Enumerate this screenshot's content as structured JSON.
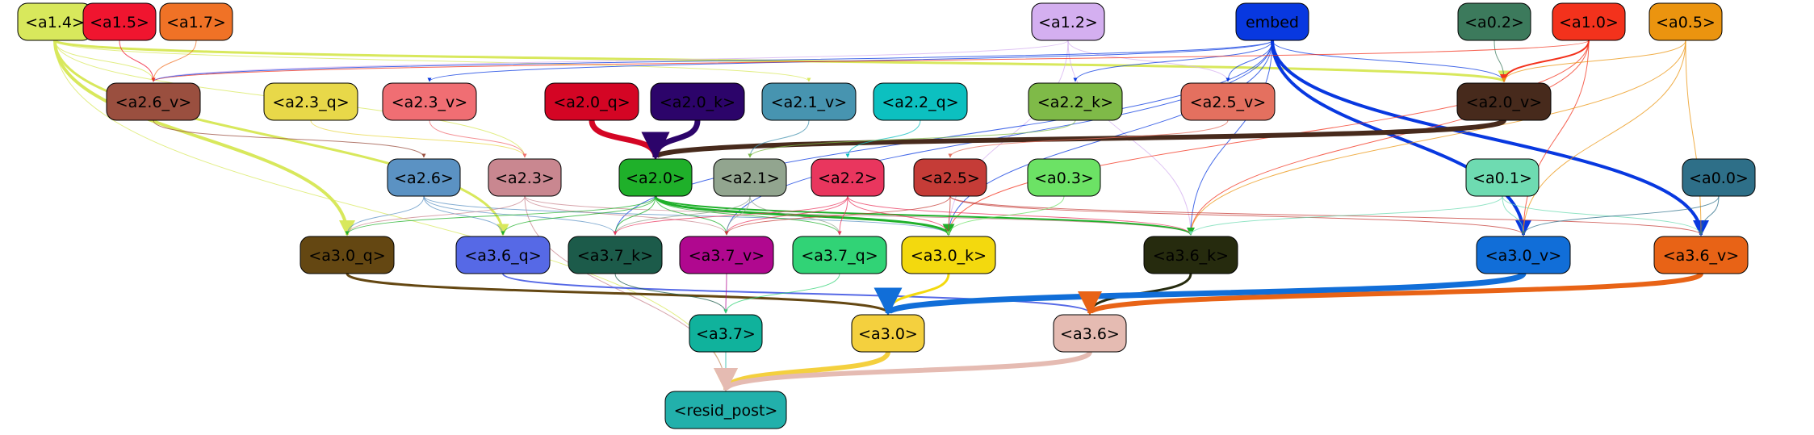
{
  "diagram": {
    "nodes": [
      {
        "id": "a1_4",
        "label": "<a1.4>",
        "fill": "#d8e85c",
        "text": "#000000"
      },
      {
        "id": "a1_5",
        "label": "<a1.5>",
        "fill": "#f0152f",
        "text": "#000000"
      },
      {
        "id": "a1_7",
        "label": "<a1.7>",
        "fill": "#f07226",
        "text": "#000000"
      },
      {
        "id": "a1_2",
        "label": "<a1.2>",
        "fill": "#d4aff0",
        "text": "#000000"
      },
      {
        "id": "embed",
        "label": "embed",
        "fill": "#0838e0",
        "text": "#000000"
      },
      {
        "id": "a0_2",
        "label": "<a0.2>",
        "fill": "#3c7a5c",
        "text": "#000000"
      },
      {
        "id": "a1_0",
        "label": "<a1.0>",
        "fill": "#f3321c",
        "text": "#000000"
      },
      {
        "id": "a0_5",
        "label": "<a0.5>",
        "fill": "#eb940f",
        "text": "#000000"
      },
      {
        "id": "a2_6_v",
        "label": "<a2.6_v>",
        "fill": "#9a4f3f",
        "text": "#000000"
      },
      {
        "id": "a2_3_q",
        "label": "<a2.3_q>",
        "fill": "#e8d849",
        "text": "#000000"
      },
      {
        "id": "a2_3_v",
        "label": "<a2.3_v>",
        "fill": "#f06e73",
        "text": "#000000"
      },
      {
        "id": "a2_0_q",
        "label": "<a2.0_q>",
        "fill": "#d40524",
        "text": "#000000"
      },
      {
        "id": "a2_0_k",
        "label": "<a2.0_k>",
        "fill": "#2c046a",
        "text": "#000000"
      },
      {
        "id": "a2_1_v",
        "label": "<a2.1_v>",
        "fill": "#4794b0",
        "text": "#000000"
      },
      {
        "id": "a2_2_q",
        "label": "<a2.2_q>",
        "fill": "#0cc0c0",
        "text": "#000000"
      },
      {
        "id": "a2_2_k",
        "label": "<a2.2_k>",
        "fill": "#7fba48",
        "text": "#000000"
      },
      {
        "id": "a2_5_v",
        "label": "<a2.5_v>",
        "fill": "#e4705f",
        "text": "#000000"
      },
      {
        "id": "a2_0_v",
        "label": "<a2.0_v>",
        "fill": "#472a1c",
        "text": "#000000"
      },
      {
        "id": "a2_6",
        "label": "<a2.6>",
        "fill": "#5b92c3",
        "text": "#000000"
      },
      {
        "id": "a2_3",
        "label": "<a2.3>",
        "fill": "#c98790",
        "text": "#000000"
      },
      {
        "id": "a2_0",
        "label": "<a2.0>",
        "fill": "#1fb02a",
        "text": "#000000"
      },
      {
        "id": "a2_1",
        "label": "<a2.1>",
        "fill": "#92a58f",
        "text": "#000000"
      },
      {
        "id": "a2_2",
        "label": "<a2.2>",
        "fill": "#e9365e",
        "text": "#000000"
      },
      {
        "id": "a2_5",
        "label": "<a2.5>",
        "fill": "#c53c37",
        "text": "#000000"
      },
      {
        "id": "a0_3",
        "label": "<a0.3>",
        "fill": "#6ce265",
        "text": "#000000"
      },
      {
        "id": "a0_1",
        "label": "<a0.1>",
        "fill": "#6edbb1",
        "text": "#000000"
      },
      {
        "id": "a0_0",
        "label": "<a0.0>",
        "fill": "#2e6f88",
        "text": "#000000"
      },
      {
        "id": "a3_0_q",
        "label": "<a3.0_q>",
        "fill": "#644712",
        "text": "#000000"
      },
      {
        "id": "a3_6_q",
        "label": "<a3.6_q>",
        "fill": "#5669e6",
        "text": "#000000"
      },
      {
        "id": "a3_7_k",
        "label": "<a3.7_k>",
        "fill": "#1c5b4a",
        "text": "#000000"
      },
      {
        "id": "a3_7_v",
        "label": "<a3.7_v>",
        "fill": "#b0088f",
        "text": "#000000"
      },
      {
        "id": "a3_7_q",
        "label": "<a3.7_q>",
        "fill": "#31d376",
        "text": "#000000"
      },
      {
        "id": "a3_0_k",
        "label": "<a3.0_k>",
        "fill": "#f3d90e",
        "text": "#000000"
      },
      {
        "id": "a3_6_k",
        "label": "<a3.6_k>",
        "fill": "#262b0e",
        "text": "#000000"
      },
      {
        "id": "a3_0_v",
        "label": "<a3.0_v>",
        "fill": "#116ed8",
        "text": "#000000"
      },
      {
        "id": "a3_6_v",
        "label": "<a3.6_v>",
        "fill": "#e86316",
        "text": "#000000"
      },
      {
        "id": "a3_7",
        "label": "<a3.7>",
        "fill": "#10b29c",
        "text": "#000000"
      },
      {
        "id": "a3_0",
        "label": "<a3.0>",
        "fill": "#f4d03e",
        "text": "#000000"
      },
      {
        "id": "a3_6",
        "label": "<a3.6>",
        "fill": "#e5bbb2",
        "text": "#000000"
      },
      {
        "id": "resid_post",
        "label": "<resid_post>",
        "fill": "#22b0ab",
        "text": "#000000"
      }
    ],
    "edges": [
      {
        "from": "a1_4",
        "to": "a2_6_v",
        "color": "#d8e85c",
        "weight": 1
      },
      {
        "from": "a1_4",
        "to": "a2_0_v",
        "color": "#d8e85c",
        "weight": 3
      },
      {
        "from": "a1_4",
        "to": "a2_1_v",
        "color": "#d8e85c",
        "weight": 1
      },
      {
        "from": "a1_4",
        "to": "a3_0_q",
        "color": "#d8e85c",
        "weight": 4
      },
      {
        "from": "a1_4",
        "to": "a3_6_q",
        "color": "#d8e85c",
        "weight": 3
      },
      {
        "from": "a1_4",
        "to": "a2_3",
        "color": "#d8e85c",
        "weight": 1
      },
      {
        "from": "a1_4",
        "to": "resid_post",
        "color": "#d8e85c",
        "weight": 1
      },
      {
        "from": "a1_5",
        "to": "a2_6_v",
        "color": "#f0152f",
        "weight": 1
      },
      {
        "from": "a1_7",
        "to": "a2_6_v",
        "color": "#f07226",
        "weight": 1
      },
      {
        "from": "a1_2",
        "to": "a2_6_v",
        "color": "#d4aff0",
        "weight": 1
      },
      {
        "from": "a1_2",
        "to": "a2_5_v",
        "color": "#d4aff0",
        "weight": 1
      },
      {
        "from": "a1_2",
        "to": "a3_6_k",
        "color": "#d4aff0",
        "weight": 1
      },
      {
        "from": "a1_2",
        "to": "a3_0_k",
        "color": "#d4aff0",
        "weight": 1
      },
      {
        "from": "embed",
        "to": "a2_6_v",
        "color": "#0838e0",
        "weight": 1
      },
      {
        "from": "embed",
        "to": "a2_3_v",
        "color": "#0838e0",
        "weight": 1
      },
      {
        "from": "embed",
        "to": "a2_2_k",
        "color": "#0838e0",
        "weight": 1
      },
      {
        "from": "embed",
        "to": "a2_5_v",
        "color": "#0838e0",
        "weight": 1
      },
      {
        "from": "embed",
        "to": "a2_0_v",
        "color": "#0838e0",
        "weight": 1
      },
      {
        "from": "embed",
        "to": "a3_0_v",
        "color": "#0838e0",
        "weight": 4
      },
      {
        "from": "embed",
        "to": "a3_6_v",
        "color": "#0838e0",
        "weight": 4
      },
      {
        "from": "embed",
        "to": "a3_6_k",
        "color": "#0838e0",
        "weight": 1
      },
      {
        "from": "embed",
        "to": "a3_0_k",
        "color": "#0838e0",
        "weight": 1
      },
      {
        "from": "embed",
        "to": "a3_7_k",
        "color": "#0838e0",
        "weight": 1
      },
      {
        "from": "embed",
        "to": "a3_7_v",
        "color": "#0838e0",
        "weight": 1
      },
      {
        "from": "a0_2",
        "to": "a2_0_v",
        "color": "#3c7a5c",
        "weight": 1
      },
      {
        "from": "a1_0",
        "to": "a2_0_v",
        "color": "#f3321c",
        "weight": 2
      },
      {
        "from": "a1_0",
        "to": "a2_6_v",
        "color": "#f3321c",
        "weight": 1
      },
      {
        "from": "a1_0",
        "to": "a3_0_v",
        "color": "#f3321c",
        "weight": 1
      },
      {
        "from": "a1_0",
        "to": "a3_6_k",
        "color": "#f3321c",
        "weight": 1
      },
      {
        "from": "a1_0",
        "to": "a3_0_k",
        "color": "#f3321c",
        "weight": 1
      },
      {
        "from": "a0_5",
        "to": "a2_0_v",
        "color": "#eb940f",
        "weight": 1
      },
      {
        "from": "a0_5",
        "to": "a3_6_v",
        "color": "#eb940f",
        "weight": 1
      },
      {
        "from": "a0_5",
        "to": "a3_0_v",
        "color": "#eb940f",
        "weight": 1
      },
      {
        "from": "a0_5",
        "to": "a3_6_k",
        "color": "#eb940f",
        "weight": 1
      },
      {
        "from": "a2_0_v",
        "to": "a2_0",
        "color": "#472a1c",
        "weight": 6
      },
      {
        "from": "a2_0_q",
        "to": "a2_0",
        "color": "#d40524",
        "weight": 7
      },
      {
        "from": "a2_0_k",
        "to": "a2_0",
        "color": "#2c046a",
        "weight": 7
      },
      {
        "from": "a2_1_v",
        "to": "a2_1",
        "color": "#4794b0",
        "weight": 1
      },
      {
        "from": "a2_2_q",
        "to": "a2_2",
        "color": "#0cc0c0",
        "weight": 1
      },
      {
        "from": "a2_2_k",
        "to": "a2_1",
        "color": "#7fba48",
        "weight": 1
      },
      {
        "from": "a2_5_v",
        "to": "a2_5",
        "color": "#e4705f",
        "weight": 1
      },
      {
        "from": "a2_3_q",
        "to": "a2_3",
        "color": "#e8d849",
        "weight": 1
      },
      {
        "from": "a2_3_v",
        "to": "a2_3",
        "color": "#f06e73",
        "weight": 1
      },
      {
        "from": "a2_6_v",
        "to": "a2_6",
        "color": "#9a4f3f",
        "weight": 1
      },
      {
        "from": "a2_6",
        "to": "a3_0_q",
        "color": "#5b92c3",
        "weight": 1
      },
      {
        "from": "a2_6",
        "to": "a3_6_q",
        "color": "#5b92c3",
        "weight": 1
      },
      {
        "from": "a2_6",
        "to": "a3_7_k",
        "color": "#5b92c3",
        "weight": 1
      },
      {
        "from": "a2_6",
        "to": "a3_0_k",
        "color": "#5b92c3",
        "weight": 1
      },
      {
        "from": "a2_3",
        "to": "a3_0_q",
        "color": "#c98790",
        "weight": 1
      },
      {
        "from": "a2_3",
        "to": "a3_7_v",
        "color": "#c98790",
        "weight": 1
      },
      {
        "from": "a2_3",
        "to": "a3_6_k",
        "color": "#c98790",
        "weight": 1
      },
      {
        "from": "a2_3",
        "to": "resid_post",
        "color": "#c98790",
        "weight": 1
      },
      {
        "from": "a2_0",
        "to": "a3_0_q",
        "color": "#1fb02a",
        "weight": 1
      },
      {
        "from": "a2_0",
        "to": "a3_6_q",
        "color": "#1fb02a",
        "weight": 1
      },
      {
        "from": "a2_0",
        "to": "a3_7_k",
        "color": "#1fb02a",
        "weight": 1
      },
      {
        "from": "a2_0",
        "to": "a3_7_v",
        "color": "#1fb02a",
        "weight": 1
      },
      {
        "from": "a2_0",
        "to": "a3_7_q",
        "color": "#1fb02a",
        "weight": 1
      },
      {
        "from": "a2_0",
        "to": "a3_0_k",
        "color": "#1fb02a",
        "weight": 3
      },
      {
        "from": "a2_0",
        "to": "a3_6_k",
        "color": "#1fb02a",
        "weight": 2
      },
      {
        "from": "a2_1",
        "to": "a3_7_k",
        "color": "#92a58f",
        "weight": 1
      },
      {
        "from": "a2_1",
        "to": "a3_7_v",
        "color": "#92a58f",
        "weight": 1
      },
      {
        "from": "a2_1",
        "to": "a3_7_q",
        "color": "#92a58f",
        "weight": 1
      },
      {
        "from": "a2_2",
        "to": "a3_7_k",
        "color": "#e9365e",
        "weight": 1
      },
      {
        "from": "a2_2",
        "to": "a3_7_v",
        "color": "#e9365e",
        "weight": 1
      },
      {
        "from": "a2_2",
        "to": "a3_7_q",
        "color": "#e9365e",
        "weight": 1
      },
      {
        "from": "a2_2",
        "to": "a3_0_k",
        "color": "#e9365e",
        "weight": 1
      },
      {
        "from": "a2_2",
        "to": "a3_6_k",
        "color": "#e9365e",
        "weight": 1
      },
      {
        "from": "a2_5",
        "to": "a3_7_v",
        "color": "#c53c37",
        "weight": 1
      },
      {
        "from": "a2_5",
        "to": "a3_0_k",
        "color": "#c53c37",
        "weight": 1
      },
      {
        "from": "a2_5",
        "to": "a3_0_v",
        "color": "#c53c37",
        "weight": 1
      },
      {
        "from": "a2_5",
        "to": "a3_6_v",
        "color": "#c53c37",
        "weight": 1
      },
      {
        "from": "a0_3",
        "to": "a3_0_k",
        "color": "#6ce265",
        "weight": 1
      },
      {
        "from": "a0_1",
        "to": "a3_0_v",
        "color": "#6edbb1",
        "weight": 1
      },
      {
        "from": "a0_1",
        "to": "a3_6_v",
        "color": "#6edbb1",
        "weight": 1
      },
      {
        "from": "a0_1",
        "to": "a3_6_k",
        "color": "#6edbb1",
        "weight": 1
      },
      {
        "from": "a0_0",
        "to": "a3_0_v",
        "color": "#2e6f88",
        "weight": 1
      },
      {
        "from": "a0_0",
        "to": "a3_6_v",
        "color": "#2e6f88",
        "weight": 1
      },
      {
        "from": "a3_0_q",
        "to": "a3_0",
        "color": "#644712",
        "weight": 3
      },
      {
        "from": "a3_6_q",
        "to": "a3_6",
        "color": "#5669e6",
        "weight": 2
      },
      {
        "from": "a3_7_k",
        "to": "a3_7",
        "color": "#1c5b4a",
        "weight": 1
      },
      {
        "from": "a3_7_v",
        "to": "a3_7",
        "color": "#b0088f",
        "weight": 1
      },
      {
        "from": "a3_7_q",
        "to": "a3_7",
        "color": "#31d376",
        "weight": 1
      },
      {
        "from": "a3_0_k",
        "to": "a3_0",
        "color": "#f3d90e",
        "weight": 3
      },
      {
        "from": "a3_6_k",
        "to": "a3_6",
        "color": "#262b0e",
        "weight": 3
      },
      {
        "from": "a3_0_v",
        "to": "a3_0",
        "color": "#116ed8",
        "weight": 7
      },
      {
        "from": "a3_6_v",
        "to": "a3_6",
        "color": "#e86316",
        "weight": 6
      },
      {
        "from": "a3_7",
        "to": "resid_post",
        "color": "#10b29c",
        "weight": 1
      },
      {
        "from": "a3_0",
        "to": "resid_post",
        "color": "#f4d03e",
        "weight": 6
      },
      {
        "from": "a3_6",
        "to": "resid_post",
        "color": "#e5bbb2",
        "weight": 6
      }
    ]
  }
}
